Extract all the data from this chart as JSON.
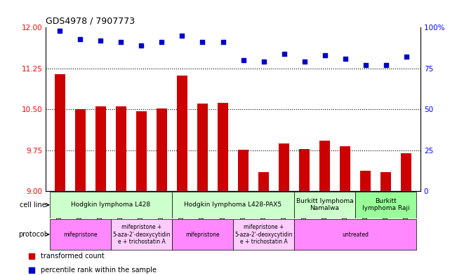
{
  "title": "GDS4978 / 7907773",
  "samples": [
    "GSM1081175",
    "GSM1081176",
    "GSM1081177",
    "GSM1081187",
    "GSM1081188",
    "GSM1081189",
    "GSM1081178",
    "GSM1081179",
    "GSM1081180",
    "GSM1081190",
    "GSM1081191",
    "GSM1081192",
    "GSM1081181",
    "GSM1081182",
    "GSM1081183",
    "GSM1081184",
    "GSM1081185",
    "GSM1081186"
  ],
  "bar_values": [
    11.15,
    10.5,
    10.55,
    10.55,
    10.47,
    10.52,
    11.12,
    10.6,
    10.62,
    9.76,
    9.35,
    9.87,
    9.77,
    9.93,
    9.82,
    9.37,
    9.35,
    9.7
  ],
  "dot_values": [
    98,
    93,
    92,
    91,
    89,
    91,
    95,
    91,
    91,
    80,
    79,
    84,
    79,
    83,
    81,
    77,
    77,
    82
  ],
  "ylim_left": [
    9,
    12
  ],
  "ylim_right": [
    0,
    100
  ],
  "yticks_left": [
    9,
    9.75,
    10.5,
    11.25,
    12
  ],
  "yticks_right": [
    0,
    25,
    50,
    75,
    100
  ],
  "bar_color": "#cc0000",
  "dot_color": "#0000cc",
  "cell_line_groups": [
    {
      "label": "Hodgkin lymphoma L428",
      "start": 0,
      "end": 5,
      "color": "#ccffcc"
    },
    {
      "label": "Hodgkin lymphoma L428-PAX5",
      "start": 6,
      "end": 11,
      "color": "#ccffcc"
    },
    {
      "label": "Burkitt lymphoma\nNamalwa",
      "start": 12,
      "end": 14,
      "color": "#ccffcc"
    },
    {
      "label": "Burkitt\nlymphoma Raji",
      "start": 15,
      "end": 17,
      "color": "#99ff99"
    }
  ],
  "protocol_groups": [
    {
      "label": "mifepristone",
      "start": 0,
      "end": 2,
      "color": "#ff88ff"
    },
    {
      "label": "mifepristone +\n5-aza-2'-deoxycytidin\ne + trichostatin A",
      "start": 3,
      "end": 5,
      "color": "#ffccff"
    },
    {
      "label": "mifepristone",
      "start": 6,
      "end": 8,
      "color": "#ff88ff"
    },
    {
      "label": "mifepristone +\n5-aza-2'-deoxycytidin\ne + trichostatin A",
      "start": 9,
      "end": 11,
      "color": "#ffccff"
    },
    {
      "label": "untreated",
      "start": 12,
      "end": 17,
      "color": "#ff88ff"
    }
  ],
  "legend_bar_label": "transformed count",
  "legend_dot_label": "percentile rank within the sample",
  "cell_line_label": "cell line",
  "protocol_label": "protocol",
  "bg_color": "#dddddd"
}
